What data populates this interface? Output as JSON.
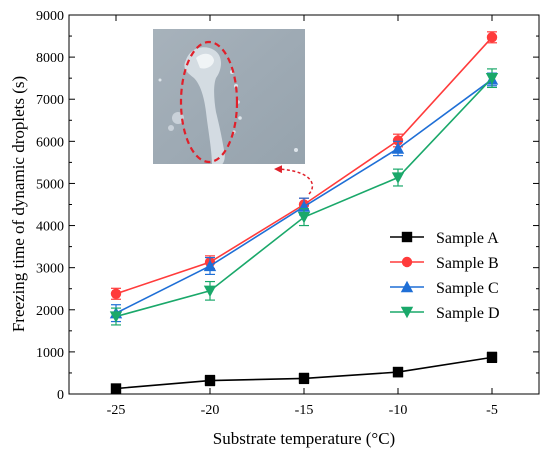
{
  "chart_data": {
    "type": "line",
    "title": "",
    "xlabel": "Substrate temperature (°C)",
    "ylabel": "Freezing time of dynamic droplets (s)",
    "xlim": [
      -27.5,
      -2.5
    ],
    "ylim": [
      0,
      9000
    ],
    "x": [
      -25,
      -20,
      -15,
      -10,
      -5
    ],
    "x_tick_labels": [
      "-25",
      "-20",
      "-15",
      "-10",
      "-5"
    ],
    "y_ticks": [
      0,
      1000,
      2000,
      3000,
      4000,
      5000,
      6000,
      7000,
      8000,
      9000
    ],
    "y_tick_labels": [
      "0",
      "1000",
      "2000",
      "3000",
      "4000",
      "5000",
      "6000",
      "7000",
      "8000",
      "9000"
    ],
    "grid": false,
    "legend_position": "lower-right",
    "series": [
      {
        "name": "Sample A",
        "color": "#000000",
        "marker": "square",
        "values": [
          130,
          320,
          370,
          520,
          870
        ],
        "errors": [
          100,
          120,
          120,
          110,
          120
        ]
      },
      {
        "name": "Sample B",
        "color": "#ff3b3b",
        "marker": "circle",
        "values": [
          2380,
          3130,
          4500,
          6020,
          8470
        ],
        "errors": [
          130,
          150,
          150,
          150,
          130
        ]
      },
      {
        "name": "Sample C",
        "color": "#1f6fd6",
        "marker": "triangle-up",
        "values": [
          1920,
          3040,
          4450,
          5830,
          7470
        ],
        "errors": [
          200,
          200,
          200,
          170,
          150
        ]
      },
      {
        "name": "Sample D",
        "color": "#1aa86a",
        "marker": "triangle-down",
        "values": [
          1840,
          2450,
          4200,
          5140,
          7500
        ],
        "errors": [
          200,
          220,
          200,
          200,
          220
        ]
      }
    ],
    "inset": {
      "subject": "photograph of a frozen droplet trace",
      "highlight_color": "#e0202a",
      "pointer_to_x": -15,
      "pointer_to_y": 4500
    }
  }
}
